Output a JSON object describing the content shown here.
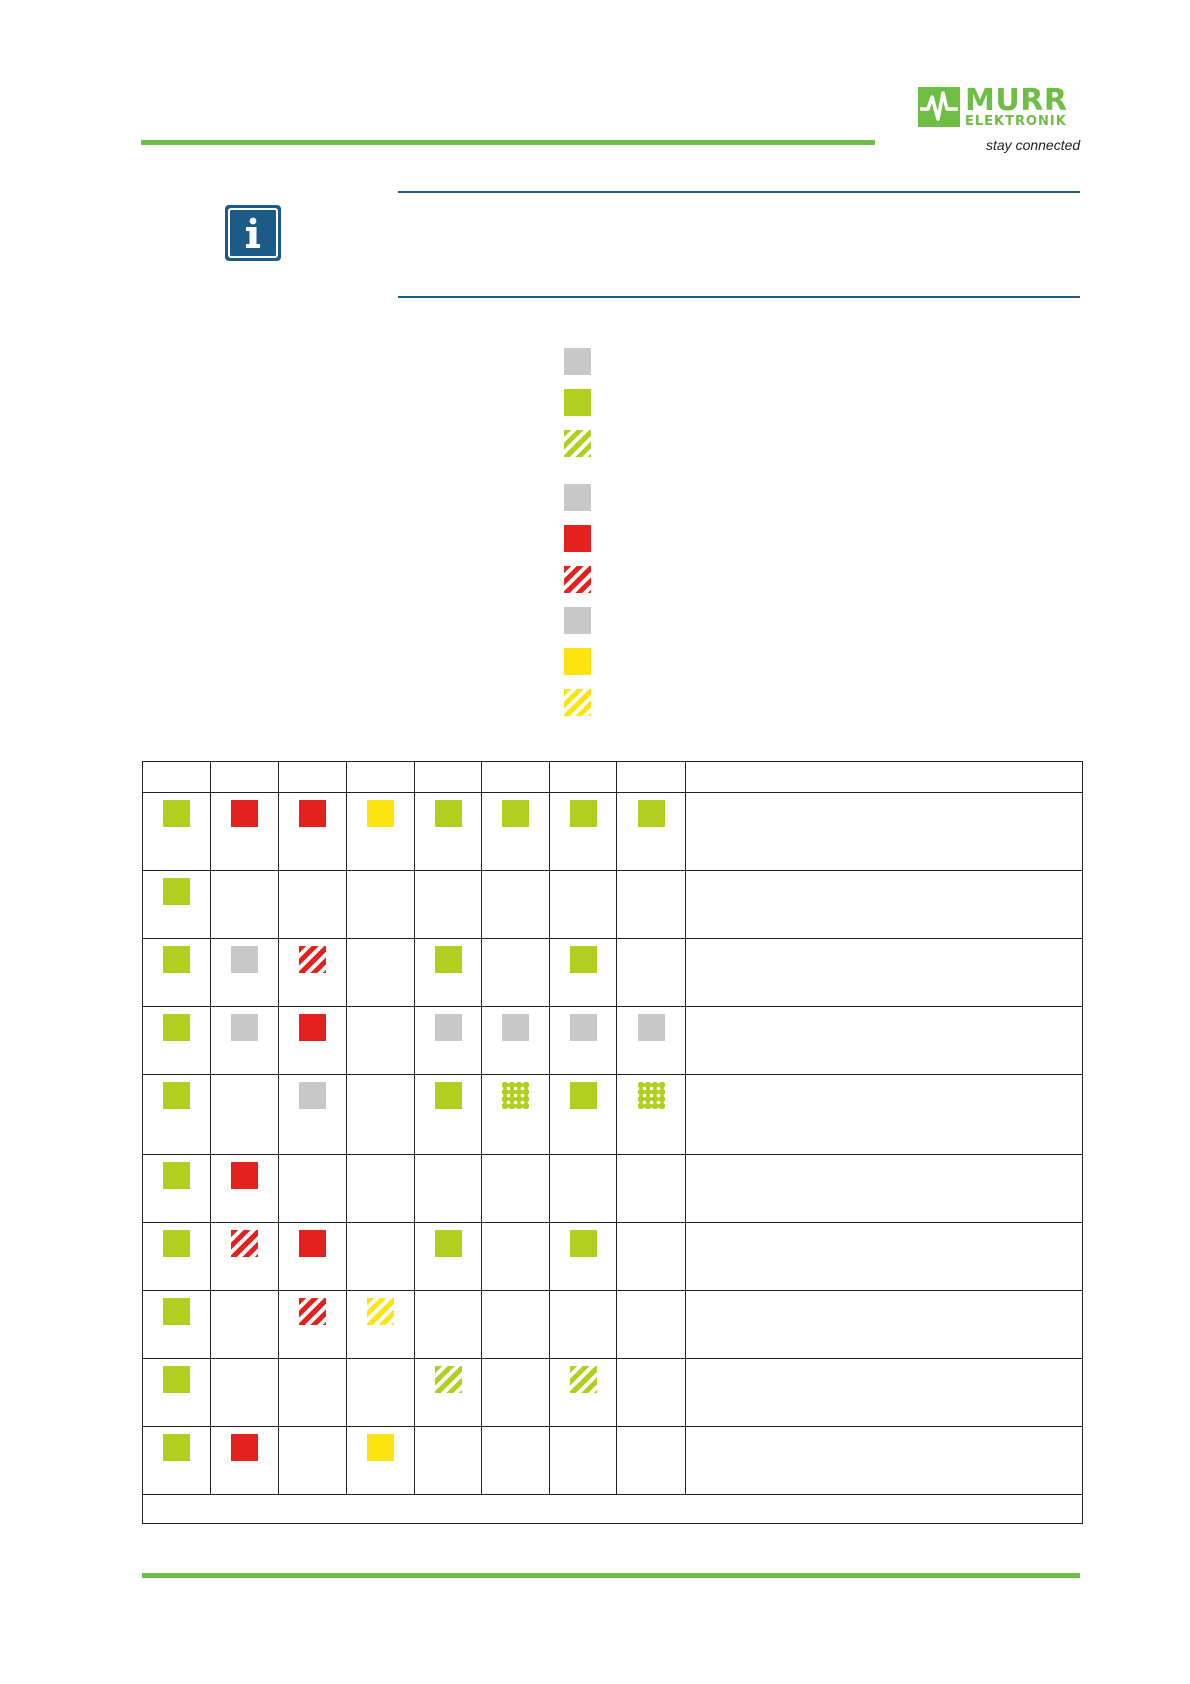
{
  "brand": {
    "name_line1": "MURR",
    "name_line2": "ELEKTRONIK",
    "tagline": "stay connected",
    "color": "#6ebd45"
  },
  "info": {
    "icon": "info-icon",
    "color": "#1c5a87"
  },
  "colors": {
    "green": "#b2cf1f",
    "red": "#e3211f",
    "yellow": "#fde30f",
    "gray": "#c8c8c8"
  },
  "legend": [
    {
      "state": "gray"
    },
    {
      "state": "green"
    },
    {
      "state": "green-flash"
    },
    {
      "state": "gray"
    },
    {
      "state": "red"
    },
    {
      "state": "red-flash"
    },
    {
      "state": "gray"
    },
    {
      "state": "yellow"
    },
    {
      "state": "yellow-flash"
    }
  ],
  "table": {
    "rows": [
      {
        "leds": [
          "green",
          "red",
          "red",
          "yellow",
          "green",
          "green",
          "green",
          "green"
        ]
      },
      {
        "leds": [
          "green",
          "",
          "",
          "",
          "",
          "",
          "",
          ""
        ]
      },
      {
        "leds": [
          "green",
          "gray",
          "red-flash",
          "",
          "green",
          "",
          "green",
          ""
        ]
      },
      {
        "leds": [
          "green",
          "gray",
          "red",
          "",
          "gray",
          "gray",
          "gray",
          "gray"
        ]
      },
      {
        "leds": [
          "green",
          "",
          "gray",
          "",
          "green",
          "green-dots",
          "green",
          "green-dots"
        ]
      },
      {
        "leds": [
          "green",
          "red",
          "",
          "",
          "",
          "",
          "",
          ""
        ]
      },
      {
        "leds": [
          "green",
          "red-flash",
          "red",
          "",
          "green",
          "",
          "green",
          ""
        ]
      },
      {
        "leds": [
          "green",
          "",
          "red-flash",
          "yellow-flash",
          "",
          "",
          "",
          ""
        ]
      },
      {
        "leds": [
          "green",
          "",
          "",
          "",
          "green-flash",
          "",
          "green-flash",
          ""
        ]
      },
      {
        "leds": [
          "green",
          "red",
          "",
          "yellow",
          "",
          "",
          "",
          ""
        ]
      }
    ]
  }
}
